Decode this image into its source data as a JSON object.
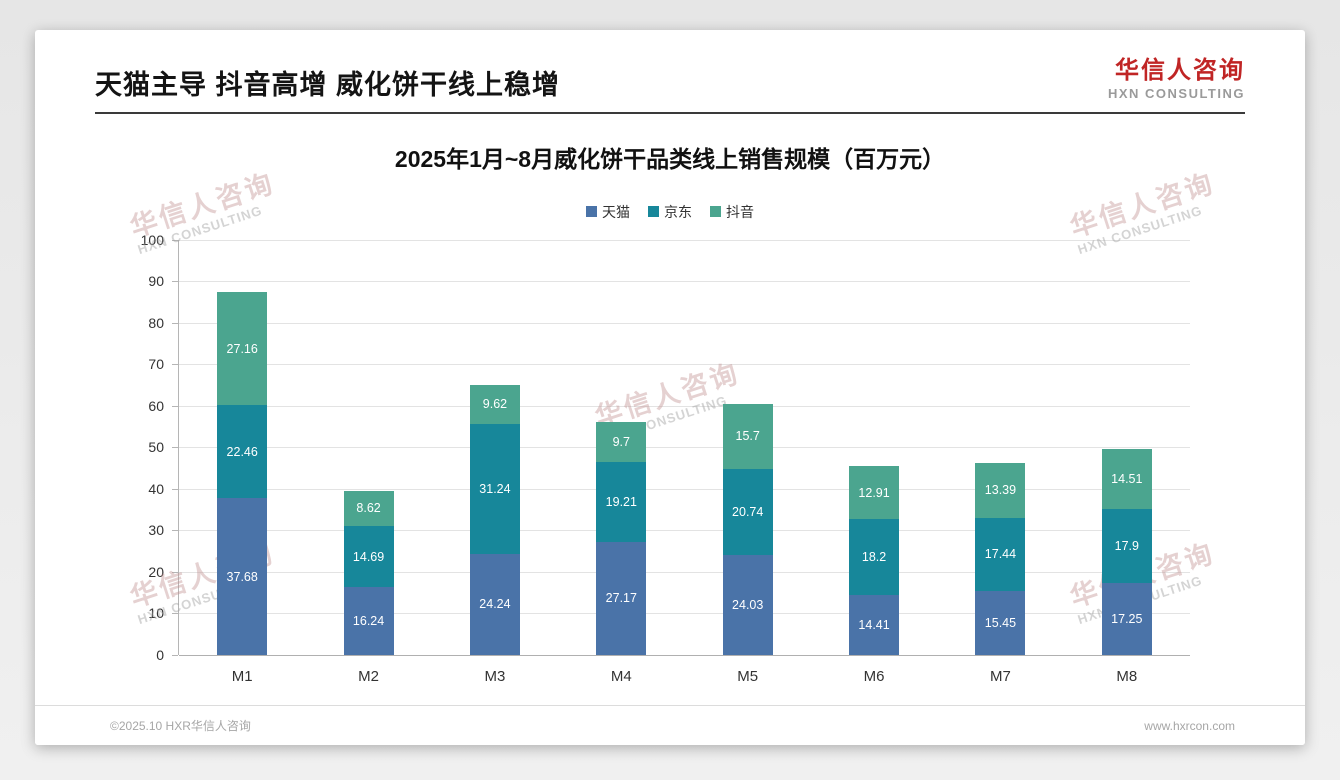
{
  "page": {
    "title": "天猫主导 抖音高增 威化饼干线上稳增",
    "logo": {
      "name": "华信人咨询",
      "subtitle": "HXN CONSULTING"
    },
    "footer": {
      "left": "©2025.10 HXR华信人咨询",
      "right": "www.hxrcon.com"
    },
    "watermark": {
      "line1": "华信人咨询",
      "line2": "HXN CONSULTING"
    }
  },
  "chart_data": {
    "type": "bar",
    "stacked": true,
    "title": "2025年1月~8月威化饼干品类线上销售规模（百万元）",
    "categories": [
      "M1",
      "M2",
      "M3",
      "M4",
      "M5",
      "M6",
      "M7",
      "M8"
    ],
    "series": [
      {
        "name": "天猫",
        "color": "#4a73a8",
        "values": [
          37.68,
          16.24,
          24.24,
          27.17,
          24.03,
          14.41,
          15.45,
          17.25
        ]
      },
      {
        "name": "京东",
        "color": "#17879a",
        "values": [
          22.46,
          14.69,
          31.24,
          19.21,
          20.74,
          18.2,
          17.44,
          17.9
        ]
      },
      {
        "name": "抖音",
        "color": "#4ba58f",
        "values": [
          27.16,
          8.62,
          9.62,
          9.7,
          15.7,
          12.91,
          13.39,
          14.51
        ]
      }
    ],
    "ylim": [
      0,
      100
    ],
    "ytick_step": 10,
    "grid": true,
    "legend_position": "top"
  }
}
